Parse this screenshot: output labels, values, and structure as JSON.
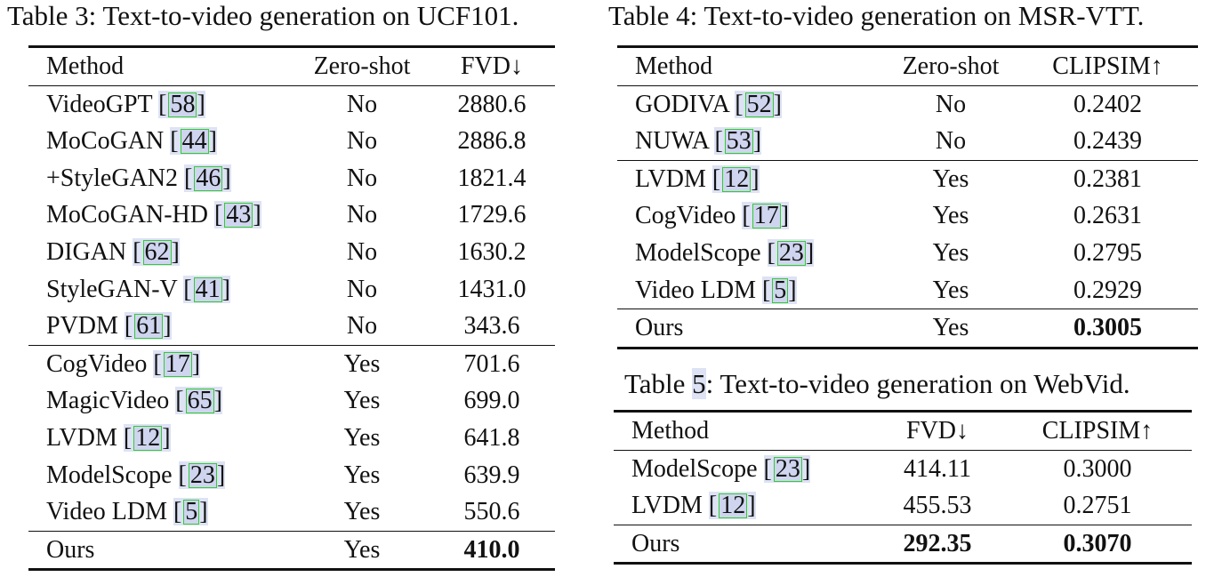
{
  "table3": {
    "caption": "Table 3: Text-to-video generation on UCF101.",
    "headers": [
      "Method",
      "Zero-shot",
      "FVD↓"
    ],
    "group1": [
      {
        "method": "VideoGPT",
        "cite": "58",
        "zero_shot": "No",
        "fvd": "2880.6"
      },
      {
        "method": "MoCoGAN",
        "cite": "44",
        "zero_shot": "No",
        "fvd": "2886.8"
      },
      {
        "method": "+StyleGAN2",
        "cite": "46",
        "zero_shot": "No",
        "fvd": "1821.4"
      },
      {
        "method": "MoCoGAN-HD",
        "cite": "43",
        "zero_shot": "No",
        "fvd": "1729.6"
      },
      {
        "method": "DIGAN",
        "cite": "62",
        "zero_shot": "No",
        "fvd": "1630.2"
      },
      {
        "method": "StyleGAN-V",
        "cite": "41",
        "zero_shot": "No",
        "fvd": "1431.0"
      },
      {
        "method": "PVDM",
        "cite": "61",
        "zero_shot": "No",
        "fvd": "343.6"
      }
    ],
    "group2": [
      {
        "method": "CogVideo",
        "cite": "17",
        "zero_shot": "Yes",
        "fvd": "701.6"
      },
      {
        "method": "MagicVideo",
        "cite": "65",
        "zero_shot": "Yes",
        "fvd": "699.0"
      },
      {
        "method": "LVDM",
        "cite": "12",
        "zero_shot": "Yes",
        "fvd": "641.8"
      },
      {
        "method": "ModelScope",
        "cite": "23",
        "zero_shot": "Yes",
        "fvd": "639.9"
      },
      {
        "method": "Video LDM",
        "cite": "5",
        "zero_shot": "Yes",
        "fvd": "550.6"
      }
    ],
    "ours": {
      "method": "Ours",
      "zero_shot": "Yes",
      "fvd": "410.0"
    }
  },
  "table4": {
    "caption": "Table 4: Text-to-video generation on MSR-VTT.",
    "headers": [
      "Method",
      "Zero-shot",
      "CLIPSIM↑"
    ],
    "group1": [
      {
        "method": "GODIVA",
        "cite": "52",
        "zero_shot": "No",
        "clipsim": "0.2402"
      },
      {
        "method": "NUWA",
        "cite": "53",
        "zero_shot": "No",
        "clipsim": "0.2439"
      }
    ],
    "group2": [
      {
        "method": "LVDM",
        "cite": "12",
        "zero_shot": "Yes",
        "clipsim": "0.2381"
      },
      {
        "method": "CogVideo",
        "cite": "17",
        "zero_shot": "Yes",
        "clipsim": "0.2631"
      },
      {
        "method": "ModelScope",
        "cite": "23",
        "zero_shot": "Yes",
        "clipsim": "0.2795"
      },
      {
        "method": "Video LDM",
        "cite": "5",
        "zero_shot": "Yes",
        "clipsim": "0.2929"
      }
    ],
    "ours": {
      "method": "Ours",
      "zero_shot": "Yes",
      "clipsim": "0.3005"
    }
  },
  "table5": {
    "caption_prefix": "Table ",
    "caption_number": "5",
    "caption_suffix": ": Text-to-video generation on WebVid.",
    "headers": [
      "Method",
      "FVD↓",
      "CLIPSIM↑"
    ],
    "rows": [
      {
        "method": "ModelScope",
        "cite": "23",
        "fvd": "414.11",
        "clipsim": "0.3000"
      },
      {
        "method": "LVDM",
        "cite": "12",
        "fvd": "455.53",
        "clipsim": "0.2751"
      }
    ],
    "ours": {
      "method": "Ours",
      "fvd": "292.35",
      "clipsim": "0.3070"
    }
  }
}
